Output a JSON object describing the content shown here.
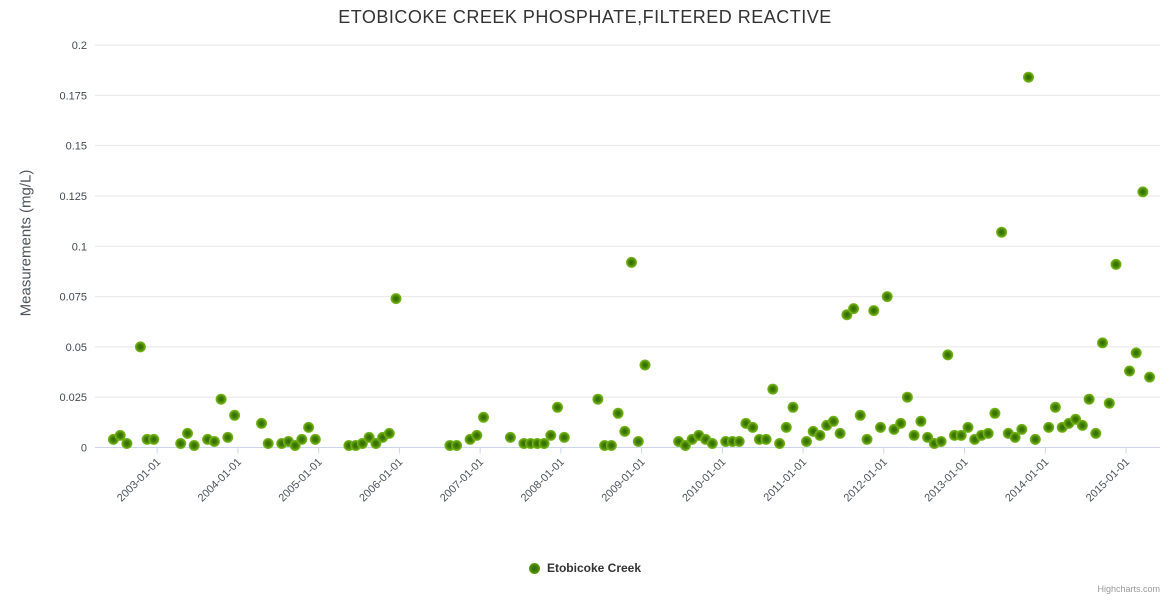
{
  "header": {
    "title": "ETOBICOKE CREEK PHOSPHATE,FILTERED REACTIVE"
  },
  "y_axis": {
    "title": "Measurements (mg/L)"
  },
  "legend": {
    "series_label": "Etobicoke Creek"
  },
  "credits": {
    "label": "Highcharts.com"
  },
  "colors": {
    "point_outer": "#7bb929",
    "point_center": "#2f6702",
    "grid_line": "#e6e6e6",
    "axis_line": "#ccd6eb",
    "title_text": "#333333",
    "label_text": "#4d545b",
    "legend_text": "#333333",
    "credits_text": "#999999"
  },
  "chart_data": {
    "type": "scatter",
    "title": "ETOBICOKE CREEK PHOSPHATE,FILTERED REACTIVE",
    "xlabel": "",
    "ylabel": "Measurements (mg/L)",
    "ylim": [
      0,
      0.2
    ],
    "x_range_years": [
      2002.23,
      2015.42
    ],
    "grid": "horizontal",
    "legend_position": "bottom-center",
    "y_ticks": [
      {
        "value": 0,
        "label": "0"
      },
      {
        "value": 0.025,
        "label": "0.025"
      },
      {
        "value": 0.05,
        "label": "0.05"
      },
      {
        "value": 0.075,
        "label": "0.075"
      },
      {
        "value": 0.1,
        "label": "0.1"
      },
      {
        "value": 0.125,
        "label": "0.125"
      },
      {
        "value": 0.15,
        "label": "0.15"
      },
      {
        "value": 0.175,
        "label": "0.175"
      },
      {
        "value": 0.2,
        "label": "0.2"
      }
    ],
    "x_ticks": [
      "2003-01-01",
      "2004-01-01",
      "2005-01-01",
      "2006-01-01",
      "2007-01-01",
      "2008-01-01",
      "2009-01-01",
      "2010-01-01",
      "2011-01-01",
      "2012-01-01",
      "2013-01-01",
      "2014-01-01",
      "2015-01-01"
    ],
    "series": [
      {
        "name": "Etobicoke Creek",
        "points": [
          [
            "2002-06",
            0.004
          ],
          [
            "2002-07",
            0.006
          ],
          [
            "2002-08",
            0.002
          ],
          [
            "2002-10",
            0.05
          ],
          [
            "2002-11",
            0.004
          ],
          [
            "2002-12",
            0.004
          ],
          [
            "2003-04",
            0.002
          ],
          [
            "2003-05",
            0.007
          ],
          [
            "2003-06",
            0.001
          ],
          [
            "2003-08",
            0.004
          ],
          [
            "2003-09",
            0.003
          ],
          [
            "2003-10",
            0.024
          ],
          [
            "2003-11",
            0.005
          ],
          [
            "2003-12",
            0.016
          ],
          [
            "2004-04",
            0.012
          ],
          [
            "2004-05",
            0.002
          ],
          [
            "2004-07",
            0.002
          ],
          [
            "2004-08",
            0.003
          ],
          [
            "2004-09",
            0.001
          ],
          [
            "2004-10",
            0.004
          ],
          [
            "2004-11",
            0.01
          ],
          [
            "2004-12",
            0.004
          ],
          [
            "2005-05",
            0.001
          ],
          [
            "2005-06",
            0.001
          ],
          [
            "2005-07",
            0.002
          ],
          [
            "2005-08",
            0.005
          ],
          [
            "2005-09",
            0.002
          ],
          [
            "2005-10",
            0.005
          ],
          [
            "2005-11",
            0.007
          ],
          [
            "2005-12",
            0.074
          ],
          [
            "2006-08",
            0.001
          ],
          [
            "2006-09",
            0.001
          ],
          [
            "2006-11",
            0.004
          ],
          [
            "2006-12",
            0.006
          ],
          [
            "2007-01",
            0.015
          ],
          [
            "2007-05",
            0.005
          ],
          [
            "2007-07",
            0.002
          ],
          [
            "2007-08",
            0.002
          ],
          [
            "2007-09",
            0.002
          ],
          [
            "2007-10",
            0.002
          ],
          [
            "2007-11",
            0.006
          ],
          [
            "2007-12",
            0.02
          ],
          [
            "2008-01",
            0.005
          ],
          [
            "2008-06",
            0.024
          ],
          [
            "2008-07",
            0.001
          ],
          [
            "2008-08",
            0.001
          ],
          [
            "2008-09",
            0.017
          ],
          [
            "2008-10",
            0.008
          ],
          [
            "2008-11",
            0.092
          ],
          [
            "2008-12",
            0.003
          ],
          [
            "2009-01",
            0.041
          ],
          [
            "2009-06",
            0.003
          ],
          [
            "2009-07",
            0.001
          ],
          [
            "2009-08",
            0.004
          ],
          [
            "2009-09",
            0.006
          ],
          [
            "2009-10",
            0.004
          ],
          [
            "2009-11",
            0.002
          ],
          [
            "2010-01",
            0.003
          ],
          [
            "2010-02",
            0.003
          ],
          [
            "2010-03",
            0.003
          ],
          [
            "2010-04",
            0.012
          ],
          [
            "2010-05",
            0.01
          ],
          [
            "2010-06",
            0.004
          ],
          [
            "2010-07",
            0.004
          ],
          [
            "2010-08",
            0.029
          ],
          [
            "2010-09",
            0.002
          ],
          [
            "2010-10",
            0.01
          ],
          [
            "2010-11",
            0.02
          ],
          [
            "2011-01",
            0.003
          ],
          [
            "2011-02",
            0.008
          ],
          [
            "2011-03",
            0.006
          ],
          [
            "2011-04",
            0.011
          ],
          [
            "2011-05",
            0.013
          ],
          [
            "2011-06",
            0.007
          ],
          [
            "2011-07",
            0.066
          ],
          [
            "2011-08",
            0.069
          ],
          [
            "2011-09",
            0.016
          ],
          [
            "2011-10",
            0.004
          ],
          [
            "2011-11",
            0.068
          ],
          [
            "2011-12",
            0.01
          ],
          [
            "2012-01",
            0.075
          ],
          [
            "2012-02",
            0.009
          ],
          [
            "2012-03",
            0.012
          ],
          [
            "2012-04",
            0.025
          ],
          [
            "2012-05",
            0.006
          ],
          [
            "2012-06",
            0.013
          ],
          [
            "2012-07",
            0.005
          ],
          [
            "2012-08",
            0.002
          ],
          [
            "2012-09",
            0.003
          ],
          [
            "2012-10",
            0.046
          ],
          [
            "2012-11",
            0.006
          ],
          [
            "2012-12",
            0.006
          ],
          [
            "2013-01",
            0.01
          ],
          [
            "2013-02",
            0.004
          ],
          [
            "2013-03",
            0.006
          ],
          [
            "2013-04",
            0.007
          ],
          [
            "2013-05",
            0.017
          ],
          [
            "2013-06",
            0.107
          ],
          [
            "2013-07",
            0.007
          ],
          [
            "2013-08",
            0.005
          ],
          [
            "2013-09",
            0.009
          ],
          [
            "2013-10",
            0.184
          ],
          [
            "2013-11",
            0.004
          ],
          [
            "2014-01",
            0.01
          ],
          [
            "2014-02",
            0.02
          ],
          [
            "2014-03",
            0.01
          ],
          [
            "2014-04",
            0.012
          ],
          [
            "2014-05",
            0.014
          ],
          [
            "2014-06",
            0.011
          ],
          [
            "2014-07",
            0.024
          ],
          [
            "2014-08",
            0.007
          ],
          [
            "2014-09",
            0.052
          ],
          [
            "2014-10",
            0.022
          ],
          [
            "2014-11",
            0.091
          ],
          [
            "2015-01",
            0.038
          ],
          [
            "2015-02",
            0.047
          ],
          [
            "2015-03",
            0.127
          ],
          [
            "2015-04",
            0.035
          ]
        ]
      }
    ]
  }
}
